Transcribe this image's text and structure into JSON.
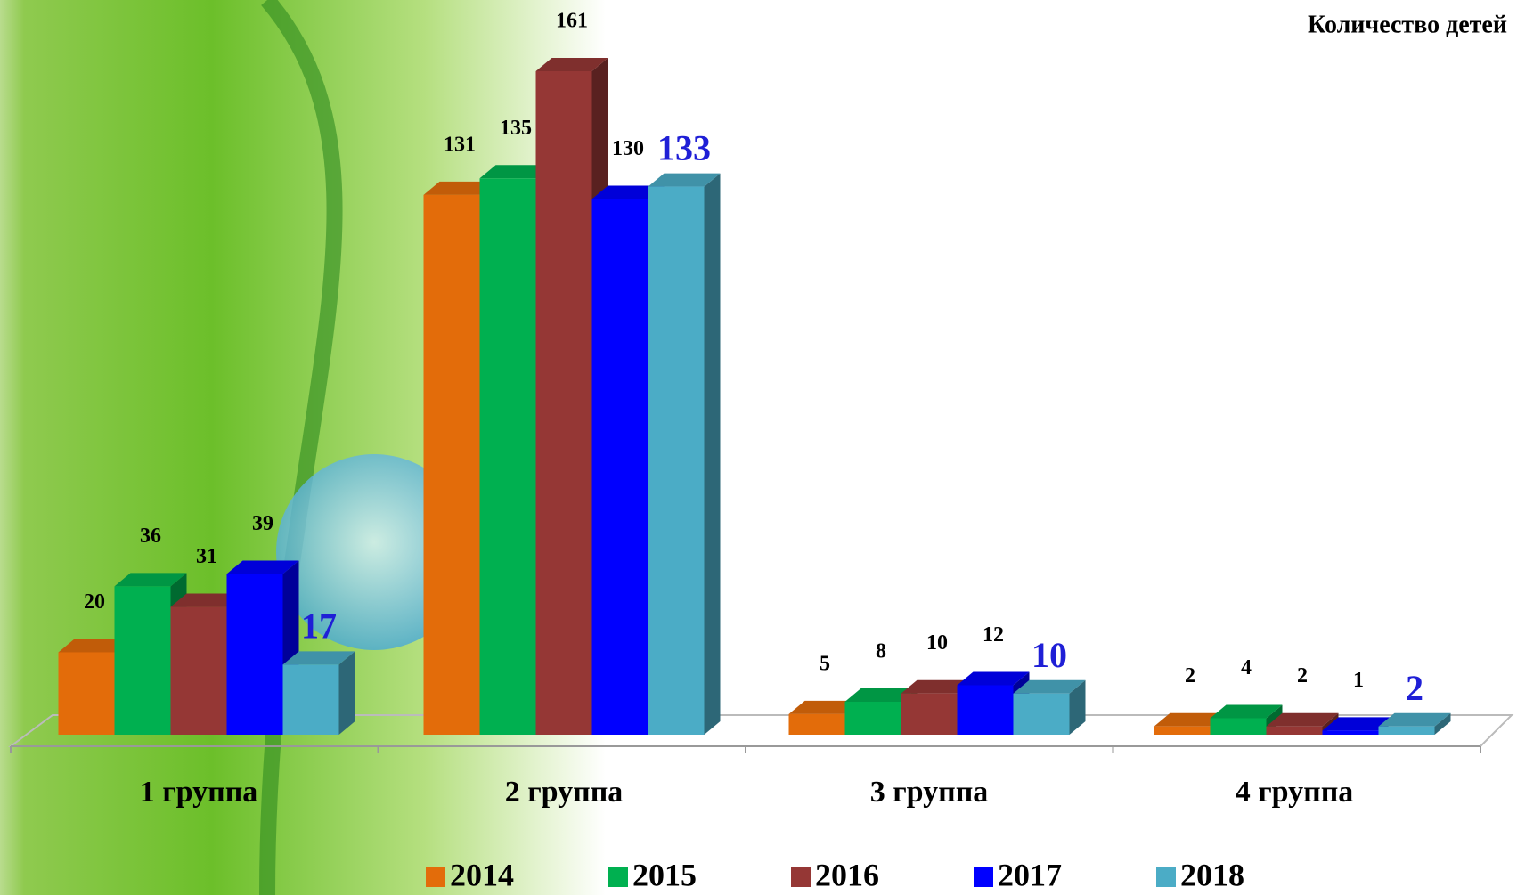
{
  "chart_data": {
    "type": "bar3d",
    "title": "Количество детей",
    "categories": [
      "1 группа",
      "2 группа",
      "3 группа",
      "4 группа"
    ],
    "series": [
      {
        "name": "2014",
        "color": "#e36c0a",
        "values": [
          20,
          131,
          5,
          2
        ]
      },
      {
        "name": "2015",
        "color": "#00b050",
        "values": [
          36,
          135,
          8,
          4
        ]
      },
      {
        "name": "2016",
        "color": "#953735",
        "values": [
          31,
          161,
          10,
          2
        ]
      },
      {
        "name": "2017",
        "color": "#0000ff",
        "values": [
          39,
          130,
          12,
          1
        ]
      },
      {
        "name": "2018",
        "color": "#4bacc6",
        "values": [
          17,
          133,
          10,
          2
        ]
      }
    ]
  }
}
